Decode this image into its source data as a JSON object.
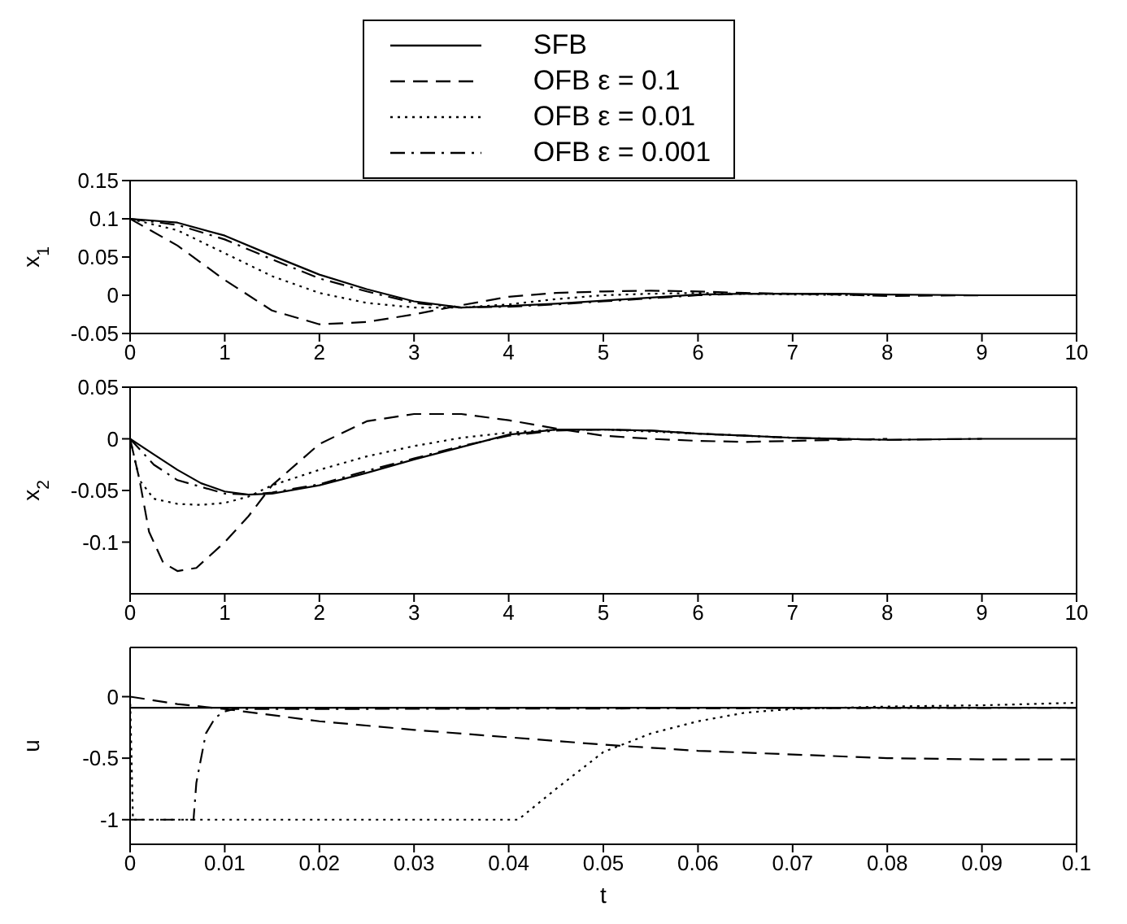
{
  "chart_data": [
    {
      "type": "line",
      "ylabel": "x$_{1}$",
      "xlim": [
        0,
        10
      ],
      "xticks": [
        0,
        1,
        2,
        3,
        4,
        5,
        6,
        7,
        8,
        9,
        10
      ],
      "ylim": [
        -0.05,
        0.15
      ],
      "yticks": [
        -0.05,
        0,
        0.05,
        0.1,
        0.15
      ],
      "legend": "top",
      "grid": false,
      "marker": "none",
      "series": [
        {
          "name": "SFB",
          "color": "#000000",
          "line_style": "solid",
          "x": [
            0,
            0.5,
            1,
            1.5,
            2,
            2.5,
            3,
            3.5,
            4,
            4.5,
            5,
            5.5,
            6,
            6.5,
            7,
            7.5,
            8,
            9,
            10
          ],
          "values": [
            0.1,
            0.095,
            0.078,
            0.052,
            0.027,
            0.008,
            -0.008,
            -0.016,
            -0.014,
            -0.011,
            -0.007,
            -0.003,
            0.001,
            0.002,
            0.002,
            0.002,
            0.001,
            0,
            0
          ]
        },
        {
          "name": "OFB ε = 0.1",
          "color": "#000000",
          "line_style": "dashed",
          "x": [
            0,
            0.5,
            1,
            1.5,
            2,
            2.5,
            3,
            3.5,
            4,
            4.5,
            5,
            5.5,
            6,
            6.5,
            7,
            7.5,
            8,
            9
          ],
          "values": [
            0.1,
            0.065,
            0.02,
            -0.02,
            -0.038,
            -0.035,
            -0.025,
            -0.013,
            -0.002,
            0.003,
            0.005,
            0.006,
            0.005,
            0.003,
            0.002,
            0.001,
            -0.001,
            0
          ]
        },
        {
          "name": "OFB ε = 0.01",
          "color": "#000000",
          "line_style": "dotted",
          "x": [
            0,
            0.5,
            1,
            1.5,
            2,
            2.5,
            3,
            3.5,
            4,
            4.5,
            5,
            5.5,
            6,
            6.5,
            7,
            8
          ],
          "values": [
            0.1,
            0.085,
            0.055,
            0.025,
            0.003,
            -0.01,
            -0.016,
            -0.016,
            -0.012,
            -0.005,
            0,
            0.002,
            0.003,
            0.002,
            0.001,
            0
          ]
        },
        {
          "name": "OFB ε = 0.001",
          "color": "#000000",
          "line_style": "dashdot",
          "x": [
            0,
            0.5,
            1,
            1.5,
            2,
            2.5,
            3,
            3.5,
            4,
            4.5,
            5,
            5.5,
            6,
            6.5,
            7,
            7.5
          ],
          "values": [
            0.1,
            0.092,
            0.073,
            0.047,
            0.022,
            0.005,
            -0.01,
            -0.016,
            -0.015,
            -0.012,
            -0.008,
            -0.004,
            0,
            0.002,
            0.002,
            0.002
          ]
        }
      ]
    },
    {
      "type": "line",
      "ylabel": "x$_{2}$",
      "xlim": [
        0,
        10
      ],
      "xticks": [
        0,
        1,
        2,
        3,
        4,
        5,
        6,
        7,
        8,
        9,
        10
      ],
      "ylim": [
        -0.15,
        0.05
      ],
      "yticks": [
        -0.1,
        -0.05,
        0,
        0.05
      ],
      "grid": false,
      "marker": "none",
      "series": [
        {
          "color": "#000000",
          "line_style": "solid",
          "x": [
            0,
            0.25,
            0.5,
            0.75,
            1,
            1.25,
            1.5,
            2,
            2.5,
            3,
            3.5,
            4,
            4.5,
            5,
            5.5,
            6,
            6.5,
            7,
            8,
            9,
            10
          ],
          "values": [
            0,
            -0.015,
            -0.03,
            -0.043,
            -0.051,
            -0.054,
            -0.053,
            -0.045,
            -0.033,
            -0.02,
            -0.008,
            0.004,
            0.009,
            0.009,
            0.008,
            0.005,
            0.003,
            0.001,
            -0.001,
            0,
            0
          ]
        },
        {
          "color": "#000000",
          "line_style": "dashed",
          "x": [
            0,
            0.1,
            0.2,
            0.35,
            0.5,
            0.7,
            1,
            1.25,
            1.5,
            2,
            2.5,
            3,
            3.5,
            4,
            4.5,
            5,
            5.5,
            6,
            6.5,
            7,
            8
          ],
          "values": [
            0,
            -0.04,
            -0.09,
            -0.12,
            -0.128,
            -0.125,
            -0.1,
            -0.075,
            -0.045,
            -0.005,
            0.017,
            0.024,
            0.024,
            0.018,
            0.01,
            0.003,
            0,
            -0.002,
            -0.003,
            -0.002,
            0
          ]
        },
        {
          "color": "#000000",
          "line_style": "dotted",
          "x": [
            0,
            0.1,
            0.25,
            0.5,
            0.75,
            1,
            1.25,
            1.5,
            2,
            2.5,
            3,
            3.5,
            4,
            4.5,
            5,
            5.5,
            6,
            7
          ],
          "values": [
            0,
            -0.04,
            -0.058,
            -0.063,
            -0.064,
            -0.062,
            -0.056,
            -0.045,
            -0.03,
            -0.017,
            -0.007,
            0.001,
            0.006,
            0.009,
            0.009,
            0.007,
            0.005,
            0.001
          ]
        },
        {
          "color": "#000000",
          "line_style": "dashdot",
          "x": [
            0,
            0.25,
            0.5,
            1,
            1.25,
            1.5,
            2,
            2.5,
            3,
            3.5,
            4,
            4.5,
            5,
            5.5,
            6,
            6.5,
            7,
            8,
            9
          ],
          "values": [
            0,
            -0.025,
            -0.04,
            -0.053,
            -0.054,
            -0.052,
            -0.044,
            -0.031,
            -0.019,
            -0.007,
            0.003,
            0.008,
            0.009,
            0.008,
            0.005,
            0.003,
            0.001,
            -0.001,
            0
          ]
        }
      ]
    },
    {
      "type": "line",
      "xlabel": "t",
      "ylabel": "u",
      "xlim": [
        0,
        0.1
      ],
      "xticks": [
        0,
        0.01,
        0.02,
        0.03,
        0.04,
        0.05,
        0.06,
        0.07,
        0.08,
        0.09,
        0.1
      ],
      "ylim": [
        -1.2,
        0.4
      ],
      "yticks": [
        -1,
        -0.5,
        0
      ],
      "grid": false,
      "marker": "none",
      "series": [
        {
          "color": "#000000",
          "line_style": "solid",
          "x": [
            0,
            0.1
          ],
          "values": [
            -0.09,
            -0.09
          ]
        },
        {
          "color": "#000000",
          "line_style": "dashed",
          "x": [
            0,
            0.005,
            0.01,
            0.02,
            0.03,
            0.04,
            0.05,
            0.06,
            0.07,
            0.08,
            0.09,
            0.1
          ],
          "values": [
            0,
            -0.06,
            -0.1,
            -0.2,
            -0.27,
            -0.33,
            -0.39,
            -0.44,
            -0.47,
            -0.5,
            -0.51,
            -0.51
          ]
        },
        {
          "color": "#000000",
          "line_style": "dotted",
          "x": [
            0,
            0.0003,
            0.041,
            0.045,
            0.05,
            0.055,
            0.06,
            0.065,
            0.07,
            0.08,
            0.09,
            0.1
          ],
          "values": [
            0,
            -1,
            -1,
            -0.75,
            -0.45,
            -0.3,
            -0.2,
            -0.13,
            -0.1,
            -0.08,
            -0.07,
            -0.05
          ]
        },
        {
          "color": "#000000",
          "line_style": "dashdot",
          "x": [
            0,
            0.0067,
            0.007,
            0.008,
            0.009,
            0.01,
            0.011,
            0.02,
            0.1
          ],
          "values": [
            -1,
            -1,
            -0.7,
            -0.3,
            -0.17,
            -0.12,
            -0.1,
            -0.1,
            -0.09
          ]
        }
      ]
    }
  ]
}
